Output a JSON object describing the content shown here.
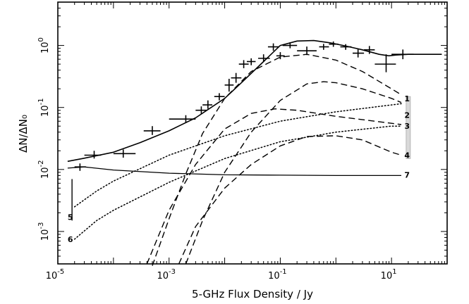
{
  "chart_data": {
    "type": "line",
    "xlabel": "5-GHz Flux Density / Jy",
    "ylabel": "ΔN/ΔN₀",
    "xscale": "log",
    "yscale": "log",
    "xlim": [
      1e-05,
      100
    ],
    "ylim": [
      0.0003,
      5
    ],
    "x_ticks": [
      {
        "value": 1e-05,
        "base": "10",
        "exp": "-5"
      },
      {
        "value": 0.001,
        "base": "10",
        "exp": "-3"
      },
      {
        "value": 0.1,
        "base": "10",
        "exp": "-1"
      },
      {
        "value": 10,
        "base": "10",
        "exp": "1"
      }
    ],
    "y_ticks": [
      {
        "value": 0.001,
        "base": "10",
        "exp": "-3"
      },
      {
        "value": 0.01,
        "base": "10",
        "exp": "-2"
      },
      {
        "value": 0.1,
        "base": "10",
        "exp": "-1"
      },
      {
        "value": 1,
        "base": "10",
        "exp": "0"
      }
    ],
    "series": [
      {
        "label": "",
        "style": "solid",
        "width": 1.6,
        "points": [
          [
            1.5e-05,
            0.0135
          ],
          [
            3e-05,
            0.0152
          ],
          [
            0.0001,
            0.019
          ],
          [
            0.0003,
            0.027
          ],
          [
            0.001,
            0.042
          ],
          [
            0.003,
            0.068
          ],
          [
            0.01,
            0.14
          ],
          [
            0.02,
            0.25
          ],
          [
            0.05,
            0.55
          ],
          [
            0.1,
            1.0
          ],
          [
            0.2,
            1.18
          ],
          [
            0.4,
            1.2
          ],
          [
            0.8,
            1.1
          ],
          [
            1.5,
            0.98
          ],
          [
            3,
            0.85
          ],
          [
            6,
            0.72
          ],
          [
            9,
            0.68
          ],
          [
            12,
            0.7
          ],
          [
            20,
            0.72
          ],
          [
            80,
            0.72
          ]
        ]
      },
      {
        "label": "1",
        "style": "dashed",
        "width": 1.4,
        "points": [
          [
            0.0005,
            0.00028
          ],
          [
            0.001,
            0.0016
          ],
          [
            0.002,
            0.0085
          ],
          [
            0.004,
            0.038
          ],
          [
            0.01,
            0.14
          ],
          [
            0.03,
            0.38
          ],
          [
            0.1,
            0.65
          ],
          [
            0.3,
            0.72
          ],
          [
            1,
            0.58
          ],
          [
            3,
            0.38
          ],
          [
            10,
            0.2
          ],
          [
            15,
            0.16
          ]
        ]
      },
      {
        "label": "2",
        "style": "dashed",
        "width": 1.4,
        "points": [
          [
            0.002,
            0.0003
          ],
          [
            0.004,
            0.0015
          ],
          [
            0.01,
            0.009
          ],
          [
            0.03,
            0.04
          ],
          [
            0.1,
            0.13
          ],
          [
            0.3,
            0.24
          ],
          [
            0.6,
            0.26
          ],
          [
            1,
            0.25
          ],
          [
            3,
            0.2
          ],
          [
            10,
            0.14
          ],
          [
            15,
            0.12
          ]
        ]
      },
      {
        "label": "3",
        "style": "dashed",
        "width": 1.4,
        "points": [
          [
            0.0004,
            0.0003
          ],
          [
            0.001,
            0.0022
          ],
          [
            0.003,
            0.012
          ],
          [
            0.01,
            0.045
          ],
          [
            0.03,
            0.08
          ],
          [
            0.08,
            0.095
          ],
          [
            0.2,
            0.09
          ],
          [
            1,
            0.072
          ],
          [
            5,
            0.06
          ],
          [
            15,
            0.053
          ]
        ]
      },
      {
        "label": "4",
        "style": "dashed",
        "width": 1.4,
        "points": [
          [
            0.0015,
            0.0003
          ],
          [
            0.003,
            0.0012
          ],
          [
            0.01,
            0.005
          ],
          [
            0.03,
            0.012
          ],
          [
            0.1,
            0.024
          ],
          [
            0.3,
            0.034
          ],
          [
            1,
            0.035
          ],
          [
            3,
            0.03
          ],
          [
            10,
            0.019
          ],
          [
            15,
            0.017
          ]
        ]
      },
      {
        "label": "5",
        "style": "dotted",
        "width": 1.5,
        "points": [
          [
            2e-05,
            0.0025
          ],
          [
            5e-05,
            0.0045
          ],
          [
            0.0001,
            0.0065
          ],
          [
            0.001,
            0.017
          ],
          [
            0.01,
            0.035
          ],
          [
            0.1,
            0.06
          ],
          [
            1,
            0.085
          ],
          [
            10,
            0.11
          ],
          [
            15,
            0.115
          ]
        ]
      },
      {
        "label": "6",
        "style": "dotted",
        "width": 1.5,
        "points": [
          [
            2e-05,
            0.00075
          ],
          [
            5e-05,
            0.0015
          ],
          [
            0.0001,
            0.0022
          ],
          [
            0.001,
            0.0062
          ],
          [
            0.01,
            0.015
          ],
          [
            0.1,
            0.028
          ],
          [
            1,
            0.04
          ],
          [
            10,
            0.05
          ],
          [
            15,
            0.05
          ]
        ]
      },
      {
        "label": "7",
        "style": "solid",
        "width": 1.3,
        "points": [
          [
            1.5e-05,
            0.0105
          ],
          [
            3e-05,
            0.011
          ],
          [
            0.0001,
            0.0098
          ],
          [
            0.001,
            0.0087
          ],
          [
            0.01,
            0.0082
          ],
          [
            0.1,
            0.0081
          ],
          [
            1,
            0.008
          ],
          [
            10,
            0.008
          ],
          [
            15,
            0.008
          ]
        ]
      }
    ],
    "data_points": [
      [
        4.5e-05,
        0.017,
        3e-05,
        6e-05,
        0.015,
        0.02
      ],
      [
        2.5e-05,
        0.011,
        2e-05,
        3.2e-05,
        0.0095,
        0.0125
      ],
      [
        0.00015,
        0.018,
        0.0001,
        0.00025,
        0.0155,
        0.021
      ],
      [
        0.0005,
        0.042,
        0.00035,
        0.0007,
        0.036,
        0.05
      ],
      [
        0.002,
        0.065,
        0.001,
        0.003,
        0.057,
        0.075
      ],
      [
        0.0038,
        0.09,
        0.003,
        0.0048,
        0.078,
        0.104
      ],
      [
        0.005,
        0.11,
        0.004,
        0.006,
        0.095,
        0.13
      ],
      [
        0.008,
        0.15,
        0.0065,
        0.01,
        0.13,
        0.17
      ],
      [
        0.012,
        0.23,
        0.01,
        0.0145,
        0.18,
        0.29
      ],
      [
        0.016,
        0.3,
        0.013,
        0.02,
        0.25,
        0.36
      ],
      [
        0.022,
        0.5,
        0.018,
        0.027,
        0.43,
        0.58
      ],
      [
        0.03,
        0.55,
        0.025,
        0.036,
        0.48,
        0.62
      ],
      [
        0.05,
        0.62,
        0.04,
        0.065,
        0.54,
        0.72
      ],
      [
        0.075,
        0.95,
        0.06,
        0.095,
        0.82,
        1.08
      ],
      [
        0.1,
        0.68,
        0.085,
        0.12,
        0.6,
        0.78
      ],
      [
        0.15,
        1.0,
        0.11,
        0.2,
        0.9,
        1.12
      ],
      [
        0.3,
        0.82,
        0.2,
        0.45,
        0.7,
        0.96
      ],
      [
        0.6,
        0.95,
        0.5,
        0.75,
        0.85,
        1.06
      ],
      [
        0.9,
        1.05,
        0.75,
        1.1,
        0.95,
        1.16
      ],
      [
        1.5,
        0.95,
        1.2,
        1.9,
        0.85,
        1.05
      ],
      [
        2.5,
        0.75,
        2,
        3.2,
        0.64,
        0.88
      ],
      [
        4,
        0.85,
        3.2,
        5,
        0.73,
        0.98
      ],
      [
        8,
        0.5,
        5,
        12,
        0.37,
        0.72
      ],
      [
        16,
        0.72,
        10,
        25,
        0.6,
        0.86
      ]
    ],
    "legend_bar": {
      "x": 20,
      "y_low": 0.015,
      "y_high": 0.15
    },
    "err_5": {
      "x": 1.8e-05,
      "y_low": 0.0015,
      "y_high": 0.007
    },
    "label_positions": [
      {
        "text": "1",
        "x": 17,
        "y": 0.14
      },
      {
        "text": "2",
        "x": 17,
        "y": 0.075
      },
      {
        "text": "3",
        "x": 17,
        "y": 0.05
      },
      {
        "text": "4",
        "x": 17,
        "y": 0.017
      },
      {
        "text": "5",
        "x": 1.5e-05,
        "y": 0.0017
      },
      {
        "text": "6",
        "x": 1.5e-05,
        "y": 0.00075
      },
      {
        "text": "7",
        "x": 17,
        "y": 0.0082
      }
    ]
  }
}
